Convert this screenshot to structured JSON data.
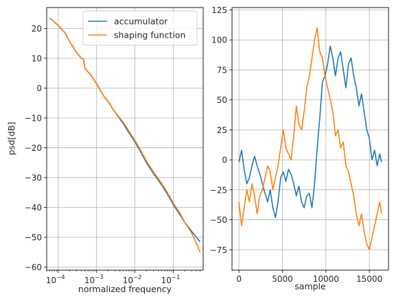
{
  "chart_data": [
    {
      "type": "line",
      "xlabel": "normalized frequency",
      "ylabel": "psd[dB]",
      "xscale": "log",
      "xlim": [
        5e-05,
        0.6
      ],
      "ylim": [
        -61,
        27
      ],
      "grid": true,
      "legend": "top-right",
      "x_ticks": [
        {
          "value": 0.0001,
          "base": "10",
          "exp": "−4"
        },
        {
          "value": 0.001,
          "base": "10",
          "exp": "−3"
        },
        {
          "value": 0.01,
          "base": "10",
          "exp": "−2"
        },
        {
          "value": 0.1,
          "base": "10",
          "exp": "−1"
        }
      ],
      "y_ticks": [
        "20",
        "10",
        "0",
        "−10",
        "−20",
        "−30",
        "−40",
        "−50",
        "−60"
      ],
      "y_tick_values": [
        20,
        10,
        0,
        -10,
        -20,
        -30,
        -40,
        -50,
        -60
      ],
      "series": [
        {
          "name": "accumulator",
          "color": "#1f77b4",
          "x": [
            6e-05,
            0.0001,
            0.00015,
            0.0002,
            0.0003,
            0.0004,
            0.00045,
            0.0005,
            0.0007,
            0.001,
            0.0013,
            0.0015,
            0.002,
            0.003,
            0.005,
            0.007,
            0.01,
            0.015,
            0.02,
            0.03,
            0.05,
            0.07,
            0.1,
            0.15,
            0.2,
            0.3,
            0.4,
            0.5
          ],
          "y": [
            23.5,
            21,
            18.5,
            15.5,
            12,
            10,
            9.8,
            6.5,
            4.5,
            1.5,
            -1,
            -2.5,
            -4.5,
            -8,
            -12,
            -15,
            -18,
            -22,
            -25,
            -28.5,
            -32.5,
            -35.5,
            -39,
            -42.5,
            -45,
            -48,
            -50,
            -51.5
          ]
        },
        {
          "name": "shaping function",
          "color": "#ff7f0e",
          "x": [
            6e-05,
            0.0001,
            0.00015,
            0.0002,
            0.0003,
            0.0004,
            0.00045,
            0.0005,
            0.0007,
            0.001,
            0.0013,
            0.0015,
            0.002,
            0.003,
            0.005,
            0.007,
            0.01,
            0.015,
            0.02,
            0.03,
            0.05,
            0.07,
            0.1,
            0.15,
            0.2,
            0.3,
            0.4,
            0.5
          ],
          "y": [
            23.5,
            21,
            18.5,
            15.5,
            12,
            10,
            9.8,
            6.5,
            4.5,
            1.5,
            -1,
            -2.5,
            -4.5,
            -8,
            -11.5,
            -14.5,
            -17.5,
            -21.5,
            -24.5,
            -28,
            -32,
            -35,
            -38.5,
            -42,
            -45,
            -48.5,
            -52,
            -55
          ]
        }
      ]
    },
    {
      "type": "line",
      "xlabel": "sample",
      "ylabel": "",
      "xlim": [
        -800,
        17200
      ],
      "ylim": [
        -92,
        127
      ],
      "grid": true,
      "x_ticks": [
        "0",
        "5000",
        "10000",
        "15000"
      ],
      "x_tick_values": [
        0,
        5000,
        10000,
        15000
      ],
      "y_ticks": [
        "125",
        "100",
        "75",
        "50",
        "25",
        "0",
        "−25",
        "−50",
        "−75"
      ],
      "y_tick_values": [
        125,
        100,
        75,
        50,
        25,
        0,
        -25,
        -50,
        -75
      ],
      "series": [
        {
          "name": "accumulator",
          "color": "#1f77b4",
          "x": [
            0,
            300,
            600,
            900,
            1200,
            1500,
            1800,
            2100,
            2400,
            2700,
            3000,
            3300,
            3600,
            3900,
            4200,
            4500,
            4800,
            5100,
            5400,
            5700,
            6000,
            6300,
            6600,
            6900,
            7200,
            7500,
            7800,
            8100,
            8400,
            8700,
            9000,
            9300,
            9600,
            9900,
            10200,
            10500,
            10800,
            11100,
            11400,
            11700,
            12000,
            12300,
            12600,
            12900,
            13200,
            13500,
            13800,
            14100,
            14400,
            14700,
            15000,
            15300,
            15600,
            15900,
            16200,
            16400
          ],
          "y": [
            -2,
            8,
            -8,
            -20,
            -15,
            -5,
            3,
            -5,
            -12,
            -20,
            -28,
            -35,
            -25,
            -40,
            -48,
            -35,
            -15,
            -10,
            -18,
            -8,
            -12,
            -20,
            -30,
            -22,
            -35,
            -40,
            -30,
            -28,
            -40,
            -20,
            10,
            35,
            65,
            70,
            80,
            95,
            85,
            70,
            85,
            90,
            75,
            60,
            80,
            85,
            70,
            60,
            45,
            55,
            40,
            25,
            18,
            0,
            8,
            -5,
            5,
            -2
          ]
        },
        {
          "name": "shaping function",
          "color": "#ff7f0e",
          "x": [
            0,
            300,
            600,
            900,
            1200,
            1500,
            1800,
            2100,
            2400,
            2700,
            3000,
            3300,
            3600,
            3900,
            4200,
            4500,
            4800,
            5100,
            5400,
            5700,
            6000,
            6300,
            6600,
            6900,
            7200,
            7500,
            7800,
            8100,
            8400,
            8700,
            9000,
            9300,
            9600,
            9900,
            10200,
            10500,
            10800,
            11100,
            11400,
            11700,
            12000,
            12300,
            12600,
            12900,
            13200,
            13500,
            13800,
            14100,
            14400,
            14700,
            15000,
            15300,
            15600,
            15900,
            16200,
            16400
          ],
          "y": [
            -35,
            -55,
            -40,
            -25,
            -35,
            -20,
            -30,
            -45,
            -30,
            -25,
            -15,
            -5,
            -10,
            -25,
            -15,
            -5,
            10,
            25,
            10,
            5,
            0,
            20,
            45,
            30,
            25,
            40,
            60,
            70,
            85,
            100,
            110,
            90,
            85,
            70,
            60,
            50,
            40,
            20,
            25,
            10,
            15,
            -5,
            -10,
            -20,
            -30,
            -45,
            -55,
            -45,
            -60,
            -70,
            -75,
            -65,
            -55,
            -45,
            -35,
            -45
          ]
        }
      ]
    }
  ]
}
